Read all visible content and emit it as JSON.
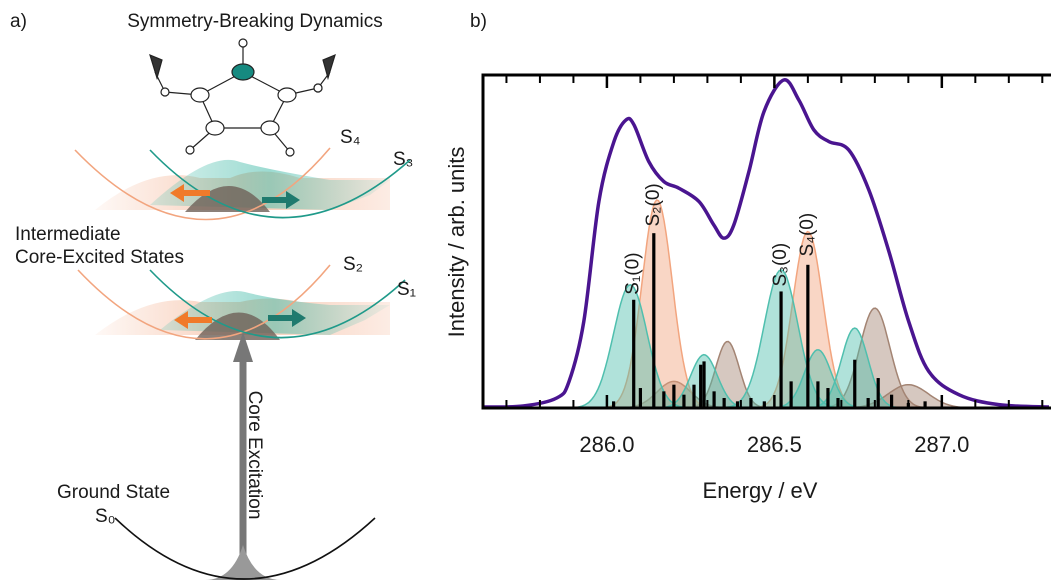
{
  "panel_a": {
    "label": "a)",
    "title": "Symmetry-Breaking Dynamics",
    "upper_states": [
      "S₄",
      "S₃"
    ],
    "intermediate": [
      "Intermediate",
      "Core-Excited States"
    ],
    "lower_states": [
      "S₂",
      "S₁"
    ],
    "excitation": "Core Excitation",
    "ground": "Ground State",
    "ground_state": "S₀"
  },
  "chart_data": {
    "type": "line",
    "panel_label": "b)",
    "xlabel": "Energy / eV",
    "ylabel": "Intensity / arb. units",
    "xlim": [
      285.63,
      287.32
    ],
    "ylim": [
      0,
      1
    ],
    "xticks": [
      {
        "value": 286,
        "label": "286.0"
      },
      {
        "value": 286.5,
        "label": "286.5"
      },
      {
        "value": 287,
        "label": "287.0"
      }
    ],
    "xminorticks": [
      285.7,
      285.8,
      285.9,
      286.1,
      286.2,
      286.3,
      286.4,
      286.6,
      286.7,
      286.8,
      286.9,
      287.1,
      287.2,
      287.3
    ],
    "color": "#4a1590",
    "x": [
      285.63,
      285.75,
      285.85,
      285.887,
      285.931,
      285.976,
      286.021,
      286.057,
      286.081,
      286.125,
      286.17,
      286.215,
      286.275,
      286.319,
      286.349,
      286.379,
      286.424,
      286.469,
      286.528,
      286.573,
      286.618,
      286.663,
      286.722,
      286.782,
      286.842,
      286.901,
      286.961,
      287.051,
      287.17,
      287.32
    ],
    "values": [
      0.003,
      0.006,
      0.03,
      0.08,
      0.26,
      0.62,
      0.8,
      0.865,
      0.85,
      0.74,
      0.68,
      0.66,
      0.62,
      0.55,
      0.51,
      0.55,
      0.71,
      0.89,
      0.985,
      0.925,
      0.835,
      0.8,
      0.775,
      0.655,
      0.47,
      0.26,
      0.11,
      0.04,
      0.01,
      0.003
    ],
    "bands": [
      {
        "center": 286.2,
        "height": 0.08,
        "width": 0.05,
        "color": "#a38473"
      },
      {
        "center": 286.36,
        "height": 0.2,
        "width": 0.035,
        "color": "#a38473"
      },
      {
        "center": 286.8,
        "height": 0.3,
        "width": 0.045,
        "color": "#a38473"
      },
      {
        "center": 286.9,
        "height": 0.07,
        "width": 0.06,
        "color": "#a38473"
      },
      {
        "center": 286.15,
        "height": 0.625,
        "width": 0.045,
        "color": "#f2a57f"
      },
      {
        "center": 286.6,
        "height": 0.53,
        "width": 0.045,
        "color": "#f2a57f"
      },
      {
        "center": 286.07,
        "height": 0.37,
        "width": 0.05,
        "color": "#4fbfae"
      },
      {
        "center": 286.29,
        "height": 0.16,
        "width": 0.04,
        "color": "#4fbfae"
      },
      {
        "center": 286.52,
        "height": 0.415,
        "width": 0.05,
        "color": "#4fbfae"
      },
      {
        "center": 286.63,
        "height": 0.175,
        "width": 0.04,
        "color": "#4fbfae"
      },
      {
        "center": 286.74,
        "height": 0.24,
        "width": 0.04,
        "color": "#4fbfae"
      }
    ],
    "sticks": {
      "color": "#000000",
      "x": [
        286.02,
        286.08,
        286.1,
        286.14,
        286.17,
        286.2,
        286.23,
        286.26,
        286.28,
        286.29,
        286.32,
        286.35,
        286.39,
        286.43,
        286.47,
        286.52,
        286.55,
        286.6,
        286.63,
        286.66,
        286.69,
        286.74,
        286.78,
        286.81,
        286.85,
        286.9,
        286.95
      ],
      "values": [
        0.02,
        0.325,
        0.06,
        0.525,
        0.05,
        0.07,
        0.04,
        0.07,
        0.13,
        0.14,
        0.05,
        0.03,
        0.02,
        0.03,
        0.02,
        0.35,
        0.08,
        0.43,
        0.08,
        0.06,
        0.03,
        0.145,
        0.03,
        0.09,
        0.04,
        0.015,
        0.02
      ]
    },
    "annotations": [
      {
        "text": "S₁(0)",
        "x": 286.08,
        "y": 0.34
      },
      {
        "text": "S₂(0)",
        "x": 286.14,
        "y": 0.545
      },
      {
        "text": "S₃(0)",
        "x": 286.52,
        "y": 0.365
      },
      {
        "text": "S₄(0)",
        "x": 286.6,
        "y": 0.455
      }
    ]
  }
}
